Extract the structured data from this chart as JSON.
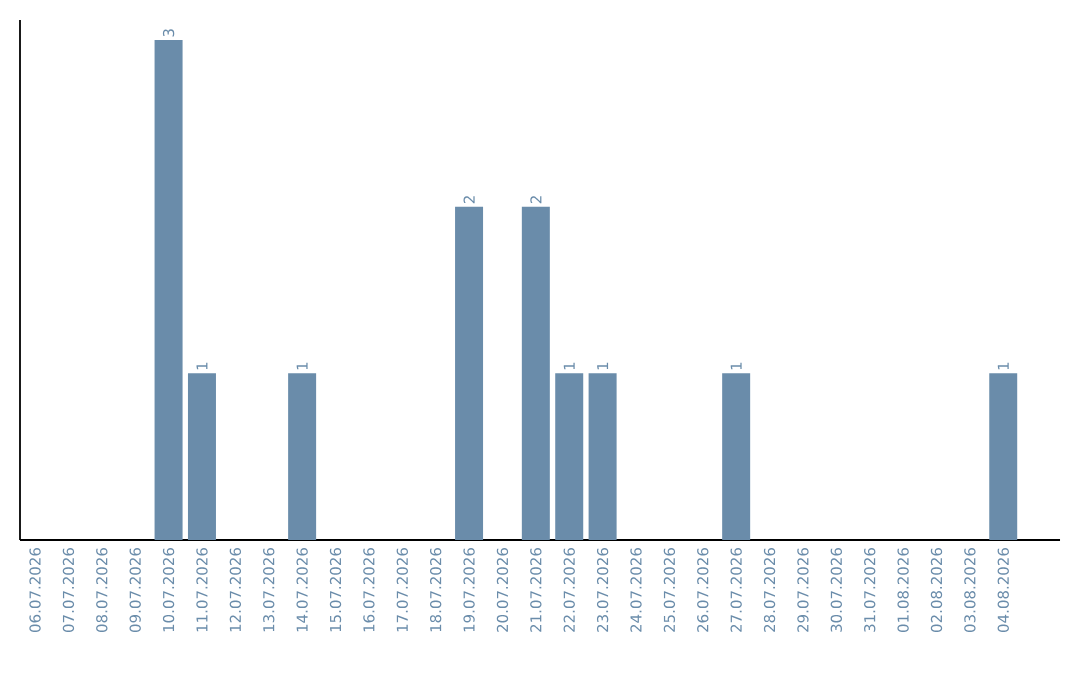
{
  "chart_data": {
    "type": "bar",
    "categories": [
      "06.07.2026",
      "07.07.2026",
      "08.07.2026",
      "09.07.2026",
      "10.07.2026",
      "11.07.2026",
      "12.07.2026",
      "13.07.2026",
      "14.07.2026",
      "15.07.2026",
      "16.07.2026",
      "17.07.2026",
      "18.07.2026",
      "19.07.2026",
      "20.07.2026",
      "21.07.2026",
      "22.07.2026",
      "23.07.2026",
      "24.07.2026",
      "25.07.2026",
      "26.07.2026",
      "27.07.2026",
      "28.07.2026",
      "29.07.2026",
      "30.07.2026",
      "31.07.2026",
      "01.08.2026",
      "02.08.2026",
      "03.08.2026",
      "04.08.2026"
    ],
    "values": [
      0,
      0,
      0,
      0,
      3,
      1,
      0,
      0,
      1,
      0,
      0,
      0,
      0,
      2,
      0,
      2,
      1,
      1,
      0,
      0,
      0,
      1,
      0,
      0,
      0,
      0,
      0,
      0,
      0,
      1
    ],
    "value_labels": [
      null,
      null,
      null,
      null,
      "3",
      "1",
      null,
      null,
      "1",
      null,
      null,
      null,
      null,
      "2",
      null,
      "2",
      "1",
      "1",
      null,
      null,
      null,
      "1",
      null,
      null,
      null,
      null,
      null,
      null,
      null,
      "1"
    ],
    "color": "#6a8caa",
    "tick_labels": "x",
    "grid": false
  }
}
